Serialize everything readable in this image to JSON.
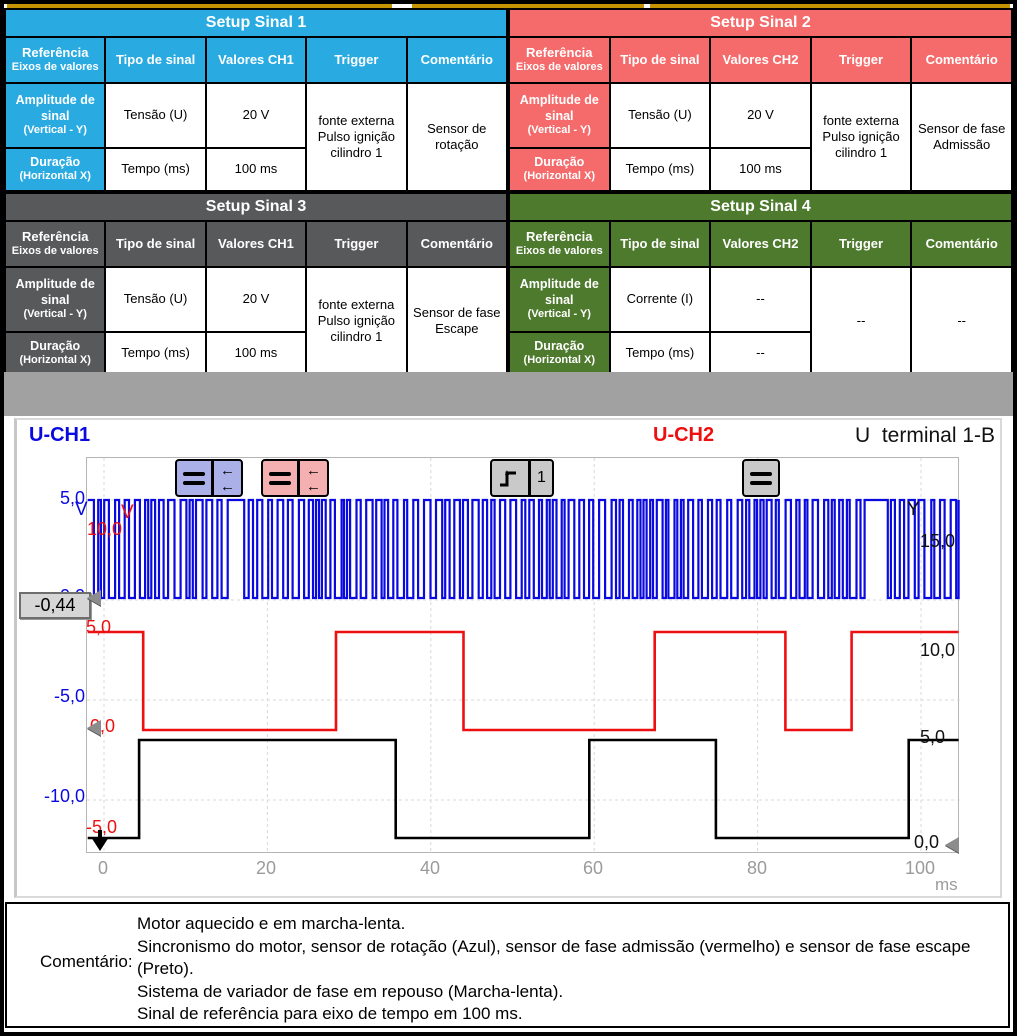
{
  "tables": [
    {
      "title": "Setup Sinal 1",
      "accent": "#29ABE2",
      "headers": {
        "ref1": "Referência",
        "ref2": "Eixos de valores",
        "tipo": "Tipo de sinal",
        "valores": "Valores CH1",
        "trigger": "Trigger",
        "comentario": "Comentário"
      },
      "rows": {
        "amp1": "Amplitude de sinal",
        "amp2": "(Vertical - Y)",
        "amp_tipo": "Tensão (U)",
        "amp_valor": "20 V",
        "dur1": "Duração",
        "dur2": "(Horizontal X)",
        "dur_tipo": "Tempo (ms)",
        "dur_valor": "100 ms",
        "trigger": "fonte externa\nPulso ignição\ncilindro 1",
        "comentario": "Sensor de rotação"
      }
    },
    {
      "title": "Setup Sinal 2",
      "accent": "#F56B6B",
      "headers": {
        "ref1": "Referência",
        "ref2": "Eixos de valores",
        "tipo": "Tipo de sinal",
        "valores": "Valores CH2",
        "trigger": "Trigger",
        "comentario": "Comentário"
      },
      "rows": {
        "amp1": "Amplitude de sinal",
        "amp2": "(Vertical - Y)",
        "amp_tipo": "Tensão (U)",
        "amp_valor": "20 V",
        "dur1": "Duração",
        "dur2": "(Horizontal X)",
        "dur_tipo": "Tempo (ms)",
        "dur_valor": "100 ms",
        "trigger": "fonte externa\nPulso ignição\ncilindro 1",
        "comentario": "Sensor de fase\nAdmissão"
      }
    },
    {
      "title": "Setup Sinal 3",
      "accent": "#58595B",
      "headers": {
        "ref1": "Referência",
        "ref2": "Eixos de valores",
        "tipo": "Tipo de sinal",
        "valores": "Valores CH1",
        "trigger": "Trigger",
        "comentario": "Comentário"
      },
      "rows": {
        "amp1": "Amplitude de sinal",
        "amp2": "(Vertical - Y)",
        "amp_tipo": "Tensão (U)",
        "amp_valor": "20 V",
        "dur1": "Duração",
        "dur2": "(Horizontal X)",
        "dur_tipo": "Tempo (ms)",
        "dur_valor": "100 ms",
        "trigger": "fonte externa\nPulso ignição\ncilindro 1",
        "comentario": "Sensor de fase\nEscape"
      }
    },
    {
      "title": "Setup Sinal 4",
      "accent": "#4E7A2E",
      "headers": {
        "ref1": "Referência",
        "ref2": "Eixos de valores",
        "tipo": "Tipo de sinal",
        "valores": "Valores CH2",
        "trigger": "Trigger",
        "comentario": "Comentário"
      },
      "rows": {
        "amp1": "Amplitude de sinal",
        "amp2": "(Vertical - Y)",
        "amp_tipo": "Corrente (I)",
        "amp_valor": "--",
        "dur1": "Duração",
        "dur2": "(Horizontal X)",
        "dur_tipo": "Tempo (ms)",
        "dur_valor": "--",
        "trigger": "--",
        "comentario": "--"
      }
    }
  ],
  "scope": {
    "channel_labels": [
      {
        "text": "U-CH1",
        "color": "#0a0ae0"
      },
      {
        "text": "U-CH2",
        "color": "#ee1010"
      },
      {
        "text": "U  terminal 1-B",
        "color": "#111111"
      }
    ],
    "trigger_icon_number": "1",
    "cursor_readout": "-0,44",
    "y_axis_blue": {
      "unit": "V",
      "ticks": [
        "5,0",
        "0,0",
        "-5,0",
        "-10,0"
      ]
    },
    "y_axis_red": {
      "unit": "V",
      "ticks": [
        "10,0",
        "5,0",
        "0,0",
        "-5,0"
      ]
    },
    "y_axis_black": {
      "unit": "Y",
      "ticks": [
        "15,0",
        "10,0",
        "5,0",
        "0,0"
      ]
    },
    "x_axis": {
      "ticks": [
        "0",
        "20",
        "40",
        "60",
        "80",
        "100"
      ],
      "unit": "ms"
    }
  },
  "chart_data": {
    "type": "line",
    "x_unit": "ms",
    "x_ticks": [
      0,
      20,
      40,
      60,
      80,
      100
    ],
    "x_range": [
      -2.0,
      104.6
    ],
    "grid": true,
    "series": [
      {
        "name": "U-CH1 sensor de rotação",
        "color": "#0a0ae0",
        "waveform": "pulse-train",
        "high_v": 5.0,
        "low_v": 0.0,
        "period_ms_approx": 1.15,
        "gaps_ms": [
          [
            13.9,
            16.4
          ],
          [
            92.8,
            95.4
          ]
        ],
        "axis_ticks_v": [
          5.0,
          0.0,
          -5.0,
          -10.0
        ]
      },
      {
        "name": "U-CH2 sensor de fase admissão",
        "color": "#ee1010",
        "axis_ticks_v": [
          10.0,
          5.0,
          0.0,
          -5.0
        ],
        "points": [
          [
            -2.0,
            5
          ],
          [
            4.8,
            5
          ],
          [
            4.8,
            0
          ],
          [
            28.4,
            0
          ],
          [
            28.4,
            5
          ],
          [
            44.0,
            5
          ],
          [
            44.0,
            0
          ],
          [
            67.4,
            0
          ],
          [
            67.4,
            5
          ],
          [
            83.4,
            5
          ],
          [
            83.4,
            0
          ],
          [
            91.5,
            0
          ],
          [
            91.5,
            5
          ],
          [
            104.6,
            5
          ]
        ]
      },
      {
        "name": "U terminal 1-B sensor de fase escape",
        "color": "#000000",
        "axis_ticks_v": [
          15.0,
          10.0,
          5.0,
          0.0
        ],
        "points": [
          [
            -2.0,
            0
          ],
          [
            4.3,
            0
          ],
          [
            4.3,
            5
          ],
          [
            35.7,
            5
          ],
          [
            35.7,
            0
          ],
          [
            59.4,
            0
          ],
          [
            59.4,
            5
          ],
          [
            74.9,
            5
          ],
          [
            74.9,
            0
          ],
          [
            98.5,
            0
          ],
          [
            98.5,
            5
          ],
          [
            104.6,
            5
          ]
        ]
      }
    ]
  },
  "comment": {
    "label": "Comentário:",
    "lines": [
      "Motor aquecido e em marcha-lenta.",
      "Sincronismo do motor, sensor de rotação (Azul), sensor de fase admissão (vermelho) e sensor de fase escape (Preto).",
      "Sistema de variador de fase em repouso (Marcha-lenta).",
      "Sinal de referência para eixo de tempo em 100 ms."
    ]
  }
}
